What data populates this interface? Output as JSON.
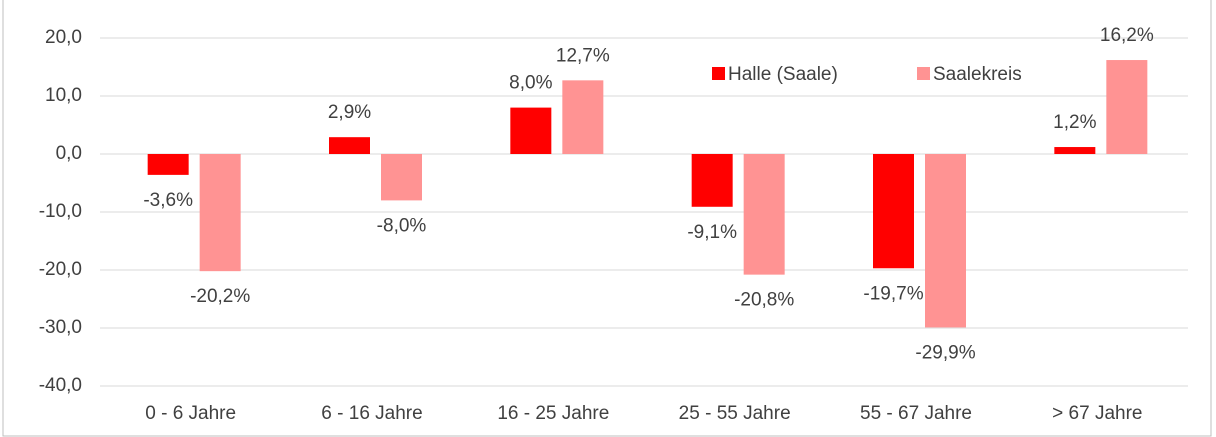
{
  "chart_data": {
    "type": "bar",
    "categories": [
      "0 - 6 Jahre",
      "6 - 16 Jahre",
      "16 - 25 Jahre",
      "25 - 55 Jahre",
      "55 - 67 Jahre",
      "> 67 Jahre"
    ],
    "series": [
      {
        "name": "Halle (Saale)",
        "color": "#ff0000",
        "values": [
          -3.6,
          2.9,
          8.0,
          -9.1,
          -19.7,
          1.2
        ],
        "value_labels": [
          "-3,6%",
          "2,9%",
          "8,0%",
          "-9,1%",
          "-19,7%",
          "1,2%"
        ]
      },
      {
        "name": "Saalekreis",
        "color": "#ff9393",
        "values": [
          -20.2,
          -8.0,
          12.7,
          -20.8,
          -29.9,
          16.2
        ],
        "value_labels": [
          "-20,2%",
          "-8,0%",
          "12,7%",
          "-20,8%",
          "-29,9%",
          "16,2%"
        ]
      }
    ],
    "ylim": [
      -40,
      20
    ],
    "yticks": [
      {
        "value": -40,
        "label": "-40,0"
      },
      {
        "value": -30,
        "label": "-30,0"
      },
      {
        "value": -20,
        "label": "-20,0"
      },
      {
        "value": -10,
        "label": "-10,0"
      },
      {
        "value": 0,
        "label": "0,0"
      },
      {
        "value": 10,
        "label": "10,0"
      },
      {
        "value": 20,
        "label": "20,0"
      }
    ],
    "grid": true
  }
}
